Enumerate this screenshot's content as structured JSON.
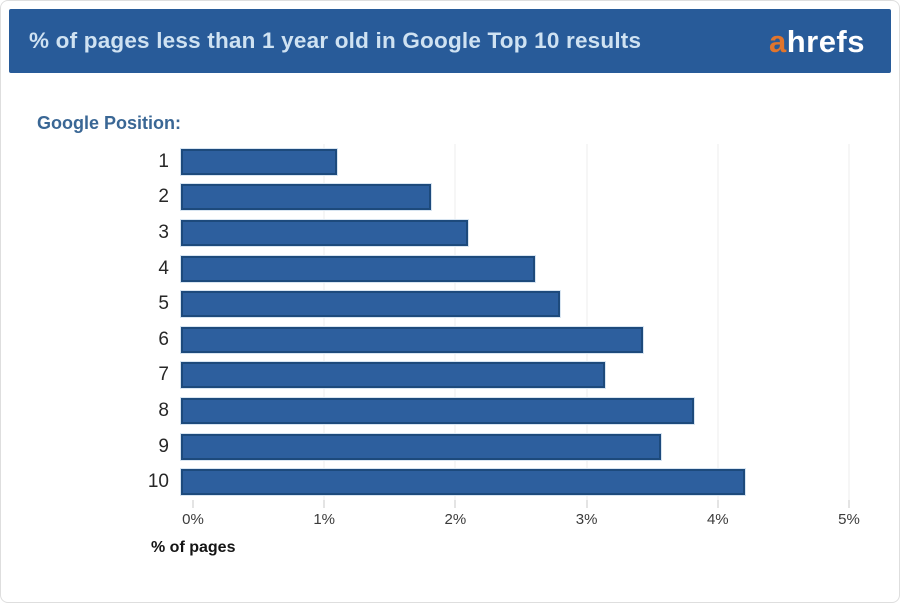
{
  "header": {
    "title": "% of pages less than 1 year old in Google Top 10 results",
    "logo_a": "a",
    "logo_rest": "hrefs"
  },
  "chart_data": {
    "type": "bar",
    "orientation": "horizontal",
    "title": "% of pages less than 1 year old in Google Top 10 results",
    "axis_title": "Google Position:",
    "categories": [
      "1",
      "2",
      "3",
      "4",
      "5",
      "6",
      "7",
      "8",
      "9",
      "10"
    ],
    "values": [
      1.17,
      1.87,
      2.15,
      2.65,
      2.84,
      3.46,
      3.17,
      3.84,
      3.59,
      4.22
    ],
    "xlabel": "% of pages",
    "x_ticks": [
      "0%",
      "1%",
      "2%",
      "3%",
      "4%",
      "5%"
    ],
    "xlim": [
      0,
      5
    ],
    "grid": true,
    "legend": false
  },
  "colors": {
    "header_bg": "#285b99",
    "title_text": "#cfe2f2",
    "logo_a": "#e0752d",
    "logo_rest": "#ffffff",
    "axis_title_text": "#3a6795",
    "bar_fill": "#2d5f9e",
    "bar_border": "#1d4a7c",
    "gridline": "#ececec",
    "tick": "#c9c9c9",
    "tick_label_text": "#3b3b3b",
    "xlabel_text": "#141414"
  }
}
